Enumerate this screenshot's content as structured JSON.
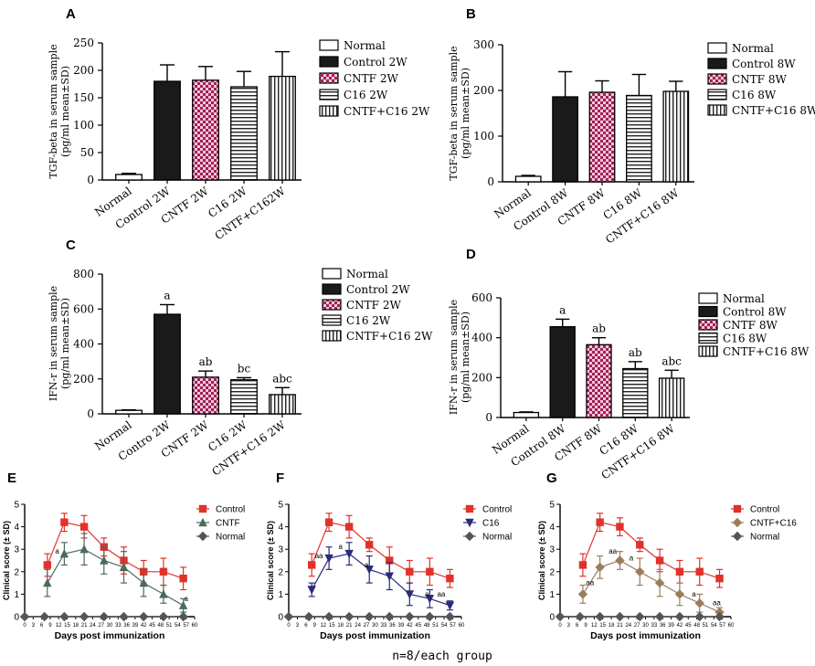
{
  "footer_text": "n=8/each group",
  "colors": {
    "control_line": "#e0322b",
    "cntf_line": "#4a6b5a",
    "c16_line": "#2a2a7a",
    "combo_line": "#9c7d5a",
    "normal_line": "#555555"
  },
  "chart_data": [
    {
      "id": "A",
      "panel_label": "A",
      "type": "bar",
      "ylabel_line1": "TGF-beta in serum sample",
      "ylabel_line2": "(pg/ml mean±SD)",
      "ylim": [
        0,
        250
      ],
      "yticks": [
        "0",
        "50",
        "100",
        "150",
        "200",
        "250"
      ],
      "categories": [
        "Normal",
        "Control 2W",
        "CNTF 2W",
        "C16 2W",
        "CNTF+C162W"
      ],
      "values": [
        10,
        180,
        182,
        170,
        189
      ],
      "errors": [
        2,
        30,
        25,
        28,
        45
      ],
      "sig_labels": [
        "",
        "",
        "",
        "",
        ""
      ],
      "legend": [
        "Normal",
        "Control 2W",
        "CNTF 2W",
        "C16 2W",
        "CNTF+C16 2W"
      ]
    },
    {
      "id": "B",
      "panel_label": "B",
      "type": "bar",
      "ylabel_line1": "TGF-beta in serum sample",
      "ylabel_line2": "(pg/ml mean±SD)",
      "ylim": [
        0,
        300
      ],
      "yticks": [
        "0",
        "100",
        "200",
        "300"
      ],
      "categories": [
        "Normal",
        "Control 8W",
        "CNTF 8W",
        "C16 8W",
        "CNTF+C16 8W"
      ],
      "values": [
        12,
        186,
        196,
        189,
        198
      ],
      "errors": [
        2,
        55,
        25,
        46,
        22
      ],
      "sig_labels": [
        "",
        "",
        "",
        "",
        ""
      ],
      "legend": [
        "Normal",
        "Control 8W",
        "CNTF 8W",
        "C16 8W",
        "CNTF+C16 8W"
      ]
    },
    {
      "id": "C",
      "panel_label": "C",
      "type": "bar",
      "ylabel_line1": "IFN-r in serum sample",
      "ylabel_line2": "(pg/ml mean±SD)",
      "ylim": [
        0,
        800
      ],
      "yticks": [
        "0",
        "200",
        "400",
        "600",
        "800"
      ],
      "categories": [
        "Normal",
        "Contro 2W",
        "CNTF 2W",
        "C16 2W",
        "CNTF+C16 2W"
      ],
      "values": [
        20,
        570,
        210,
        195,
        110
      ],
      "errors": [
        3,
        55,
        35,
        12,
        40
      ],
      "sig_labels": [
        "",
        "a",
        "ab",
        "bc",
        "abc"
      ],
      "legend": [
        "Normal",
        "Control 2W",
        "CNTF 2W",
        "C16 2W",
        "CNTF+C16 2W"
      ]
    },
    {
      "id": "D",
      "panel_label": "D",
      "type": "bar",
      "ylabel_line1": "IFN-r in serum sample",
      "ylabel_line2": "(pg/ml mean±SD)",
      "ylim": [
        0,
        600
      ],
      "yticks": [
        "0",
        "200",
        "400",
        "600"
      ],
      "categories": [
        "Normal",
        "Control 8W",
        "CNTF 8W",
        "C16 8W",
        "CNTF+C16 8W"
      ],
      "values": [
        25,
        455,
        365,
        245,
        197
      ],
      "errors": [
        3,
        38,
        35,
        35,
        40
      ],
      "sig_labels": [
        "",
        "a",
        "ab",
        "ab",
        "abc"
      ],
      "legend": [
        "Normal",
        "Control 8W",
        "CNTF 8W",
        "C16 8W",
        "CNTF+C16 8W"
      ]
    },
    {
      "id": "E",
      "panel_label": "E",
      "type": "line",
      "ylabel": "Clinical score (± SD)",
      "xlabel": "Days post immunization",
      "xlim": [
        0,
        60
      ],
      "ylim": [
        0,
        5
      ],
      "xticks": [
        "0",
        "3",
        "6",
        "9",
        "12",
        "15",
        "18",
        "21",
        "24",
        "27",
        "30",
        "33",
        "36",
        "39",
        "42",
        "45",
        "48",
        "51",
        "54",
        "57",
        "60"
      ],
      "yticks": [
        "0",
        "1",
        "2",
        "3",
        "4",
        "5"
      ],
      "series": [
        {
          "name": "Control",
          "color_key": "control_line",
          "marker": "square",
          "x": [
            8,
            14,
            21,
            28,
            35,
            42,
            49,
            56
          ],
          "y": [
            2.3,
            4.2,
            4.0,
            3.1,
            2.5,
            2.0,
            2.0,
            1.7
          ],
          "err": [
            0.5,
            0.4,
            0.5,
            0.4,
            0.6,
            0.5,
            0.6,
            0.5
          ]
        },
        {
          "name": "CNTF",
          "color_key": "cntf_line",
          "marker": "triangle-up",
          "x": [
            8,
            14,
            21,
            28,
            35,
            42,
            49,
            56
          ],
          "y": [
            1.5,
            2.8,
            3.0,
            2.5,
            2.2,
            1.5,
            1.0,
            0.5
          ],
          "err": [
            0.6,
            0.5,
            0.7,
            0.6,
            0.7,
            0.6,
            0.4,
            0.3
          ]
        },
        {
          "name": "Normal",
          "color_key": "normal_line",
          "marker": "diamond",
          "x": [
            0,
            7,
            14,
            21,
            28,
            35,
            42,
            49,
            56
          ],
          "y": [
            0,
            0,
            0,
            0,
            0,
            0,
            0,
            0,
            0
          ],
          "err": [
            0,
            0,
            0,
            0,
            0,
            0,
            0,
            0,
            0
          ]
        }
      ],
      "annotations": [
        {
          "x": 11.5,
          "y": 2.8,
          "text": "a"
        },
        {
          "x": 57,
          "y": 0.7,
          "text": "a"
        }
      ]
    },
    {
      "id": "F",
      "panel_label": "F",
      "type": "line",
      "ylabel": "Clinical score (± SD)",
      "xlabel": "Days post immunization",
      "xlim": [
        0,
        60
      ],
      "ylim": [
        0,
        5
      ],
      "xticks": [
        "0",
        "3",
        "6",
        "9",
        "12",
        "15",
        "18",
        "21",
        "24",
        "27",
        "30",
        "33",
        "36",
        "39",
        "42",
        "45",
        "48",
        "51",
        "54",
        "57",
        "60"
      ],
      "yticks": [
        "0",
        "1",
        "2",
        "3",
        "4",
        "5"
      ],
      "series": [
        {
          "name": "Control",
          "color_key": "control_line",
          "marker": "square",
          "x": [
            8,
            14,
            21,
            28,
            35,
            42,
            49,
            56
          ],
          "y": [
            2.3,
            4.2,
            4.0,
            3.2,
            2.5,
            2.0,
            2.0,
            1.7
          ],
          "err": [
            0.5,
            0.4,
            0.5,
            0.3,
            0.6,
            0.5,
            0.6,
            0.4
          ]
        },
        {
          "name": "C16",
          "color_key": "c16_line",
          "marker": "triangle-down",
          "x": [
            8,
            14,
            21,
            28,
            35,
            42,
            49,
            56
          ],
          "y": [
            1.2,
            2.6,
            2.8,
            2.1,
            1.8,
            1.0,
            0.8,
            0.5
          ],
          "err": [
            0.3,
            0.5,
            0.5,
            0.6,
            0.6,
            0.5,
            0.4,
            0.2
          ]
        },
        {
          "name": "Normal",
          "color_key": "normal_line",
          "marker": "diamond",
          "x": [
            0,
            7,
            14,
            21,
            28,
            35,
            42,
            49,
            56
          ],
          "y": [
            0,
            0,
            0,
            0,
            0,
            0,
            0,
            0,
            0
          ],
          "err": [
            0,
            0,
            0,
            0,
            0,
            0,
            0,
            0,
            0
          ]
        }
      ],
      "annotations": [
        {
          "x": 10.5,
          "y": 2.6,
          "text": "aa"
        },
        {
          "x": 18,
          "y": 3.0,
          "text": "a"
        },
        {
          "x": 27,
          "y": 2.2,
          "text": "a"
        },
        {
          "x": 48,
          "y": 0.9,
          "text": "a"
        },
        {
          "x": 53,
          "y": 0.9,
          "text": "aa"
        }
      ]
    },
    {
      "id": "G",
      "panel_label": "G",
      "type": "line",
      "ylabel": "Clinical score (± SD)",
      "xlabel": "Days post immunization",
      "xlim": [
        0,
        60
      ],
      "ylim": [
        0,
        5
      ],
      "xticks": [
        "0",
        "3",
        "6",
        "9",
        "12",
        "15",
        "18",
        "21",
        "24",
        "27",
        "30",
        "33",
        "36",
        "39",
        "42",
        "45",
        "48",
        "51",
        "54",
        "57",
        "60"
      ],
      "yticks": [
        "0",
        "1",
        "2",
        "3",
        "4",
        "5"
      ],
      "series": [
        {
          "name": "Control",
          "color_key": "control_line",
          "marker": "square",
          "x": [
            8,
            14,
            21,
            28,
            35,
            42,
            49,
            56
          ],
          "y": [
            2.3,
            4.2,
            4.0,
            3.2,
            2.5,
            2.0,
            2.0,
            1.7
          ],
          "err": [
            0.5,
            0.4,
            0.4,
            0.3,
            0.5,
            0.5,
            0.6,
            0.4
          ]
        },
        {
          "name": "CNTF+C16",
          "color_key": "combo_line",
          "marker": "diamond",
          "x": [
            8,
            14,
            21,
            28,
            35,
            42,
            49,
            56
          ],
          "y": [
            1.0,
            2.2,
            2.5,
            2.0,
            1.5,
            1.0,
            0.6,
            0.2
          ],
          "err": [
            0.4,
            0.5,
            0.4,
            0.6,
            0.6,
            0.5,
            0.4,
            0.2
          ]
        },
        {
          "name": "Normal",
          "color_key": "normal_line",
          "marker": "diamond",
          "x": [
            0,
            7,
            14,
            21,
            28,
            35,
            42,
            49,
            56
          ],
          "y": [
            0,
            0,
            0,
            0,
            0,
            0,
            0,
            0,
            0
          ],
          "err": [
            0,
            0,
            0,
            0,
            0,
            0,
            0,
            0,
            0
          ]
        }
      ],
      "annotations": [
        {
          "x": 10.5,
          "y": 1.4,
          "text": "aa"
        },
        {
          "x": 18.5,
          "y": 2.8,
          "text": "aa"
        },
        {
          "x": 25,
          "y": 2.5,
          "text": "a"
        },
        {
          "x": 47,
          "y": 0.9,
          "text": "a"
        },
        {
          "x": 55,
          "y": 0.5,
          "text": "aa"
        }
      ]
    }
  ]
}
